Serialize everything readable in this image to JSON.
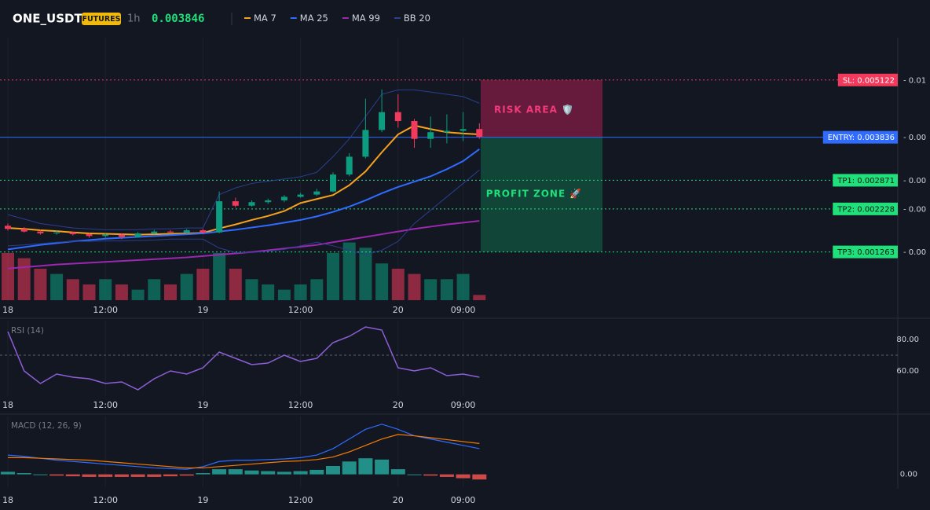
{
  "header": {
    "symbol": "ONE_USDT",
    "badge": "FUTURES",
    "interval": "1h",
    "price": "0.003846"
  },
  "chart_data": [
    {
      "type": "candlestick",
      "categories": [
        "18",
        null,
        null,
        null,
        null,
        null,
        "12:00",
        null,
        null,
        null,
        null,
        null,
        "19",
        null,
        null,
        null,
        null,
        null,
        "12:00",
        null,
        null,
        null,
        null,
        null,
        "20",
        null,
        null,
        null,
        "09:00",
        null
      ],
      "ylim": [
        0.00018,
        0.00607
      ],
      "up_color": "#0c9c7f",
      "down_color": "#f23a5c",
      "open": [
        0.00185,
        0.00178,
        0.00172,
        0.00168,
        0.0017,
        0.00166,
        0.00162,
        0.00165,
        0.0016,
        0.00168,
        0.00172,
        0.0017,
        0.00175,
        0.0017,
        0.0024,
        0.0023,
        0.00238,
        0.00242,
        0.0025,
        0.00255,
        0.00262,
        0.003,
        0.0034,
        0.004,
        0.0044,
        0.0042,
        0.0038,
        0.00395,
        0.00398,
        0.00402
      ],
      "high": [
        0.0019,
        0.00182,
        0.00176,
        0.00174,
        0.00172,
        0.0017,
        0.00168,
        0.00168,
        0.00171,
        0.00176,
        0.00175,
        0.00178,
        0.00178,
        0.00262,
        0.00248,
        0.00242,
        0.00246,
        0.00254,
        0.00259,
        0.00268,
        0.00305,
        0.00348,
        0.0047,
        0.00491,
        0.0048,
        0.00425,
        0.0043,
        0.00435,
        0.0044,
        0.00415
      ],
      "low": [
        0.00174,
        0.0017,
        0.00165,
        0.00165,
        0.00163,
        0.00158,
        0.00158,
        0.00155,
        0.00158,
        0.00166,
        0.00167,
        0.00168,
        0.00166,
        0.00168,
        0.00226,
        0.00228,
        0.00234,
        0.00238,
        0.00248,
        0.00252,
        0.0026,
        0.00296,
        0.00336,
        0.00395,
        0.00405,
        0.0036,
        0.0036,
        0.0037,
        0.00375,
        0.0038
      ],
      "close": [
        0.00178,
        0.00172,
        0.00168,
        0.0017,
        0.00166,
        0.00162,
        0.00165,
        0.0016,
        0.00168,
        0.00172,
        0.0017,
        0.00175,
        0.0017,
        0.0024,
        0.0023,
        0.00238,
        0.00242,
        0.0025,
        0.00255,
        0.00262,
        0.003,
        0.0034,
        0.004,
        0.0044,
        0.0042,
        0.0038,
        0.00395,
        0.00398,
        0.00402,
        0.003846
      ],
      "volume": [
        45,
        40,
        30,
        25,
        20,
        15,
        20,
        15,
        10,
        20,
        15,
        25,
        30,
        45,
        30,
        20,
        15,
        10,
        15,
        20,
        45,
        55,
        50,
        35,
        30,
        25,
        20,
        20,
        25,
        5
      ],
      "volume_ylim": [
        0,
        250
      ],
      "series": [
        {
          "name": "MA 7",
          "color": "#f7a21b",
          "values": [
            0.0018,
            0.00178,
            0.00175,
            0.00173,
            0.0017,
            0.00168,
            0.00167,
            0.00166,
            0.00165,
            0.00166,
            0.00167,
            0.00168,
            0.00169,
            0.00179,
            0.00188,
            0.00198,
            0.00207,
            0.00218,
            0.00236,
            0.00245,
            0.00254,
            0.00276,
            0.00307,
            0.0035,
            0.0039,
            0.0041,
            0.00402,
            0.00395,
            0.00392,
            0.0039
          ]
        },
        {
          "name": "MA 25",
          "color": "#2f6bff",
          "values": [
            0.00132,
            0.00137,
            0.00142,
            0.00146,
            0.0015,
            0.00153,
            0.00156,
            0.00158,
            0.0016,
            0.00162,
            0.00164,
            0.00166,
            0.00168,
            0.00172,
            0.00176,
            0.00181,
            0.00186,
            0.00192,
            0.00198,
            0.00206,
            0.00216,
            0.00228,
            0.00242,
            0.00258,
            0.00272,
            0.00284,
            0.00296,
            0.00312,
            0.0033,
            0.00357
          ]
        },
        {
          "name": "MA 99",
          "color": "#9c27b0",
          "values": [
            0.00089,
            0.00092,
            0.00095,
            0.00098,
            0.001,
            0.00102,
            0.00104,
            0.00106,
            0.00108,
            0.0011,
            0.00112,
            0.00114,
            0.00117,
            0.0012,
            0.00123,
            0.00126,
            0.0013,
            0.00134,
            0.00138,
            0.00142,
            0.00148,
            0.00154,
            0.0016,
            0.00166,
            0.00172,
            0.00178,
            0.00183,
            0.00188,
            0.00192,
            0.00196
          ]
        },
        {
          "name": "BB 20",
          "color": "#2a3f8f",
          "values": [
            0.0021,
            0.002,
            0.0019,
            0.00185,
            0.0018,
            0.00178,
            0.00176,
            0.00176,
            0.00176,
            0.00178,
            0.00178,
            0.0018,
            0.0018,
            0.00255,
            0.0027,
            0.0028,
            0.00285,
            0.0029,
            0.00295,
            0.00305,
            0.0034,
            0.0038,
            0.0043,
            0.0048,
            0.0049,
            0.0049,
            0.00485,
            0.0048,
            0.00475,
            0.0046
          ],
          "lower": [
            0.0014,
            0.00142,
            0.00145,
            0.00148,
            0.0015,
            0.0015,
            0.00151,
            0.00151,
            0.00152,
            0.00153,
            0.00155,
            0.00155,
            0.00155,
            0.00135,
            0.00125,
            0.00125,
            0.00128,
            0.00132,
            0.0014,
            0.00148,
            0.0014,
            0.0013,
            0.0012,
            0.0013,
            0.0015,
            0.0019,
            0.0022,
            0.0025,
            0.0028,
            0.0031
          ]
        }
      ],
      "levels": [
        {
          "label": "SL: 0.005122",
          "value": 0.005122,
          "change": "- 0.01",
          "color": "#f23a5c",
          "text_color": "#ffffff",
          "style": "dotted"
        },
        {
          "label": "ENTRY: 0.003836",
          "value": 0.003836,
          "change": "- 0.00",
          "color": "#2f6bff",
          "text_color": "#ffffff",
          "style": "solid"
        },
        {
          "label": "TP1: 0.002871",
          "value": 0.002871,
          "change": "- 0.00",
          "color": "#1fe07a",
          "text_color": "#0b1a10",
          "style": "dotted"
        },
        {
          "label": "TP2: 0.002228",
          "value": 0.002228,
          "change": "- 0.00",
          "color": "#1fe07a",
          "text_color": "#0b1a10",
          "style": "dotted"
        },
        {
          "label": "TP3: 0.001263",
          "value": 0.001263,
          "change": "- 0.00",
          "color": "#1fe07a",
          "text_color": "#0b1a10",
          "style": "dotted"
        }
      ],
      "zones": [
        {
          "label": "RISK AREA 🛡️",
          "color": "#8a1e48",
          "text_color": "#f23a7a"
        },
        {
          "label": "PROFIT ZONE 🚀",
          "color": "#0f5a40",
          "text_color": "#1fe07a"
        }
      ]
    },
    {
      "type": "line",
      "title": "RSI (14)",
      "categories": [
        "18",
        null,
        null,
        null,
        null,
        null,
        "12:00",
        null,
        null,
        null,
        null,
        null,
        "19",
        null,
        null,
        null,
        null,
        null,
        "12:00",
        null,
        null,
        null,
        null,
        null,
        "20",
        null,
        null,
        null,
        "09:00",
        null
      ],
      "ylim": [
        44.5,
        92
      ],
      "yticks": [
        {
          "value": 60,
          "label": "60.00"
        },
        {
          "value": 80,
          "label": "80.00"
        }
      ],
      "reference_line": 70,
      "series": [
        {
          "color": "#8e5fd8",
          "values": [
            85,
            60,
            52,
            58,
            56,
            55,
            52,
            53,
            48,
            55,
            60,
            58,
            62,
            72,
            68,
            64,
            65,
            70,
            66,
            68,
            78,
            82,
            88,
            86,
            62,
            60,
            62,
            57,
            58,
            56
          ]
        }
      ]
    },
    {
      "type": "macd",
      "title": "MACD (12, 26, 9)",
      "categories": [
        "18",
        null,
        null,
        null,
        null,
        null,
        "12:00",
        null,
        null,
        null,
        null,
        null,
        "19",
        null,
        null,
        null,
        null,
        null,
        "12:00",
        null,
        null,
        null,
        null,
        null,
        "20",
        null,
        null,
        null,
        "09:00",
        null
      ],
      "ylim": [
        -0.0002,
        0.0009
      ],
      "yticks": [
        {
          "value": 0,
          "label": "0.00"
        }
      ],
      "up_color": "#26a69a",
      "down_color": "#ef5350",
      "histogram": [
        4e-05,
        2e-05,
        0,
        -2e-05,
        -3e-05,
        -4e-05,
        -4e-05,
        -4e-05,
        -4e-05,
        -4e-05,
        -3e-05,
        -2e-05,
        2e-05,
        8e-05,
        8e-05,
        6e-05,
        5e-05,
        4e-05,
        5e-05,
        7e-05,
        0.00013,
        0.0002,
        0.00025,
        0.00023,
        8e-05,
        0,
        -2e-05,
        -4e-05,
        -6e-05,
        -8e-05
      ],
      "series": [
        {
          "color": "#2f6bff",
          "values": [
            0.0003,
            0.00028,
            0.00025,
            0.00022,
            0.0002,
            0.00018,
            0.00016,
            0.00014,
            0.00012,
            0.0001,
            9e-05,
            8e-05,
            0.00012,
            0.0002,
            0.00022,
            0.00022,
            0.00023,
            0.00024,
            0.00026,
            0.0003,
            0.0004,
            0.00055,
            0.0007,
            0.00078,
            0.0007,
            0.0006,
            0.00055,
            0.0005,
            0.00045,
            0.0004
          ]
        },
        {
          "color": "#f57c00",
          "values": [
            0.00026,
            0.00026,
            0.00025,
            0.00024,
            0.00023,
            0.00022,
            0.0002,
            0.00018,
            0.00016,
            0.00014,
            0.00012,
            0.0001,
            0.0001,
            0.00012,
            0.00014,
            0.00016,
            0.00018,
            0.0002,
            0.00021,
            0.00023,
            0.00027,
            0.00035,
            0.00045,
            0.00055,
            0.00062,
            0.0006,
            0.00057,
            0.00054,
            0.00051,
            0.00048
          ]
        }
      ]
    }
  ]
}
